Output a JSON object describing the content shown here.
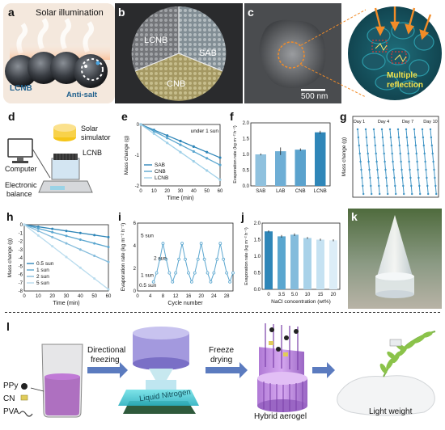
{
  "panels": {
    "a": {
      "label": "a",
      "title": "Solar illumination",
      "material": "LCNB",
      "note": "Anti-salt"
    },
    "b": {
      "label": "b",
      "sectors": [
        "LCNB",
        "SAB",
        "CNB"
      ]
    },
    "c": {
      "label": "c",
      "scale_bar": "500 nm",
      "note": "Multiple reflection"
    },
    "d": {
      "label": "d",
      "items": [
        "Solar simulator",
        "LCNB",
        "Computer",
        "Electronic balance"
      ]
    },
    "e": {
      "label": "e"
    },
    "f": {
      "label": "f"
    },
    "g": {
      "label": "g"
    },
    "h": {
      "label": "h"
    },
    "i": {
      "label": "i"
    },
    "j": {
      "label": "j"
    },
    "k": {
      "label": "k"
    },
    "l": {
      "label": "l",
      "components": [
        "PPy",
        "CN",
        "PVA"
      ],
      "step1": [
        "Directional",
        "freezing"
      ],
      "nitrogen": "Liquid Nitrogen",
      "step2": [
        "Freeze",
        "drying"
      ],
      "product": "Hybrid aerogel",
      "property": "Light weight"
    }
  },
  "chart_data": [
    {
      "panel": "e",
      "type": "line",
      "annotation": "under 1 sun",
      "xlabel": "Time (min)",
      "ylabel": "Mass change (g)",
      "xlim": [
        0,
        60
      ],
      "ylim": [
        -2,
        0
      ],
      "xticks": [
        0,
        10,
        20,
        30,
        40,
        50,
        60
      ],
      "yticks": [
        0,
        -1,
        -2
      ],
      "series": [
        {
          "name": "SAB",
          "x": [
            0,
            10,
            20,
            30,
            40,
            50,
            60
          ],
          "y": [
            0,
            -0.18,
            -0.36,
            -0.54,
            -0.72,
            -0.9,
            -1.08
          ],
          "color": "#2f86b8"
        },
        {
          "name": "CNB",
          "x": [
            0,
            10,
            20,
            30,
            40,
            50,
            60
          ],
          "y": [
            0,
            -0.22,
            -0.44,
            -0.66,
            -0.88,
            -1.1,
            -1.32
          ],
          "color": "#5aa6cf"
        },
        {
          "name": "LCNB",
          "x": [
            0,
            10,
            20,
            30,
            40,
            50,
            60
          ],
          "y": [
            0,
            -0.3,
            -0.6,
            -0.9,
            -1.2,
            -1.5,
            -1.8
          ],
          "color": "#9fd0e8"
        }
      ]
    },
    {
      "panel": "f",
      "type": "bar",
      "ylabel": "Evaporation rate (kg m⁻² h⁻¹)",
      "categories": [
        "SAB",
        "LAB",
        "CNB",
        "LCNB"
      ],
      "values": [
        1.0,
        1.1,
        1.15,
        1.7
      ],
      "errors": [
        0.03,
        0.12,
        0.04,
        0.05
      ],
      "ylim": [
        0,
        2
      ],
      "yticks": [
        0.0,
        0.5,
        1.0,
        1.5,
        2.0
      ],
      "color": "#2f86b8"
    },
    {
      "panel": "g",
      "type": "line",
      "ylabel": "Mass change (g)",
      "annotations": [
        "Day 1",
        "Day 4",
        "Day 7",
        "Day 10"
      ]
    },
    {
      "panel": "h",
      "type": "line",
      "xlabel": "Time (min)",
      "ylabel": "Mass change (g)",
      "xlim": [
        0,
        60
      ],
      "ylim": [
        -8,
        0
      ],
      "xticks": [
        0,
        10,
        20,
        30,
        40,
        50,
        60
      ],
      "yticks": [
        0,
        -1,
        -2,
        -3,
        -4,
        -5,
        -6,
        -7,
        -8
      ],
      "series": [
        {
          "name": "0.5 sun",
          "x": [
            0,
            10,
            20,
            30,
            40,
            50,
            60
          ],
          "y": [
            0,
            -0.25,
            -0.5,
            -0.75,
            -1.0,
            -1.25,
            -1.5
          ],
          "color": "#2f86b8"
        },
        {
          "name": "1 sun",
          "x": [
            0,
            10,
            20,
            30,
            40,
            50,
            60
          ],
          "y": [
            0,
            -0.45,
            -0.9,
            -1.35,
            -1.8,
            -2.25,
            -2.7
          ],
          "color": "#5aa6cf"
        },
        {
          "name": "2 sun",
          "x": [
            0,
            10,
            20,
            30,
            40,
            50,
            60
          ],
          "y": [
            0,
            -0.75,
            -1.5,
            -2.25,
            -3.0,
            -3.75,
            -4.5
          ],
          "color": "#84bcdc"
        },
        {
          "name": "5 sun",
          "x": [
            0,
            10,
            20,
            30,
            40,
            50,
            60
          ],
          "y": [
            0,
            -1.3,
            -2.6,
            -3.9,
            -5.2,
            -6.5,
            -7.8
          ],
          "color": "#b9dcee"
        }
      ]
    },
    {
      "panel": "i",
      "type": "line",
      "xlabel": "Cycle number",
      "ylabel": "Evaporation rate (kg m⁻² h⁻¹)",
      "xlim": [
        0,
        30
      ],
      "ylim": [
        0,
        6
      ],
      "xticks": [
        0,
        4,
        8,
        12,
        16,
        20,
        24,
        28
      ],
      "yticks": [
        0,
        2,
        4,
        6
      ],
      "annotations": [
        "5 sun",
        "2 sun",
        "1 sun",
        "0.5 sun"
      ],
      "series": [
        {
          "x": [
            5,
            6,
            7,
            8,
            9,
            10,
            11,
            12,
            13,
            14,
            15,
            16,
            17,
            18,
            19,
            20,
            21,
            22,
            23,
            24,
            25,
            26,
            27,
            28,
            29,
            30
          ],
          "y": [
            0.8,
            1.6,
            2.8,
            4.2,
            2.8,
            1.6,
            0.8,
            1.6,
            2.8,
            4.2,
            2.8,
            1.6,
            0.8,
            1.6,
            2.8,
            4.2,
            2.8,
            1.6,
            0.8,
            1.6,
            2.8,
            4.2,
            2.8,
            1.6,
            0.8,
            1.6
          ],
          "color": "#5aa6cf"
        }
      ]
    },
    {
      "panel": "j",
      "type": "bar",
      "xlabel": "NaCl concentration (wt%)",
      "ylabel": "Evaporation rate (kg m⁻² h⁻¹)",
      "categories": [
        "0",
        "3.5",
        "5.0",
        "10",
        "15",
        "20"
      ],
      "values": [
        1.75,
        1.6,
        1.65,
        1.55,
        1.5,
        1.48
      ],
      "errors": [
        0.03,
        0.04,
        0.04,
        0.03,
        0.03,
        0.03
      ],
      "ylim": [
        0,
        2
      ],
      "yticks": [
        0.0,
        0.5,
        1.0,
        1.5,
        2.0
      ],
      "colors": [
        "#2f86b8",
        "#5aa6cf",
        "#84bcdc",
        "#a9d2e9",
        "#c6e2f2",
        "#dcedf7"
      ]
    }
  ]
}
